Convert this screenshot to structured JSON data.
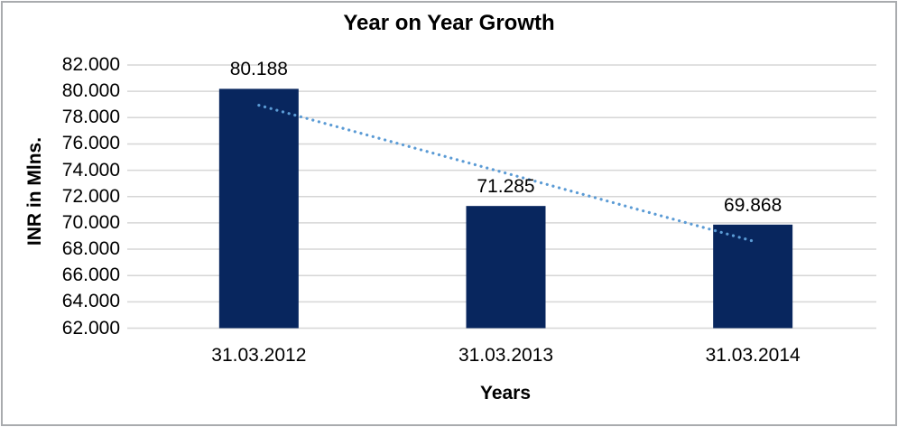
{
  "chart_data": {
    "type": "bar",
    "title": "Year on Year Growth",
    "xlabel": "Years",
    "ylabel": "INR in Mlns.",
    "categories": [
      "31.03.2012",
      "31.03.2013",
      "31.03.2014"
    ],
    "values": [
      80.188,
      71.285,
      69.868
    ],
    "value_labels": [
      "80.188",
      "71.285",
      "69.868"
    ],
    "y_ticks": [
      62,
      64,
      66,
      68,
      70,
      72,
      74,
      76,
      78,
      80,
      82
    ],
    "y_tick_labels": [
      "62.000",
      "64.000",
      "66.000",
      "68.000",
      "70.000",
      "72.000",
      "74.000",
      "76.000",
      "78.000",
      "80.000",
      "82.000"
    ],
    "ylim": [
      62,
      82
    ],
    "grid": true,
    "legend": false,
    "trendline": {
      "fit": "linear",
      "style": "dotted"
    },
    "colors": {
      "bar": "#08265e",
      "trendline": "#5b9bd5",
      "gridline": "#d6d6d6",
      "text": "#000000",
      "border": "#a9abae",
      "background": "#ffffff"
    }
  }
}
